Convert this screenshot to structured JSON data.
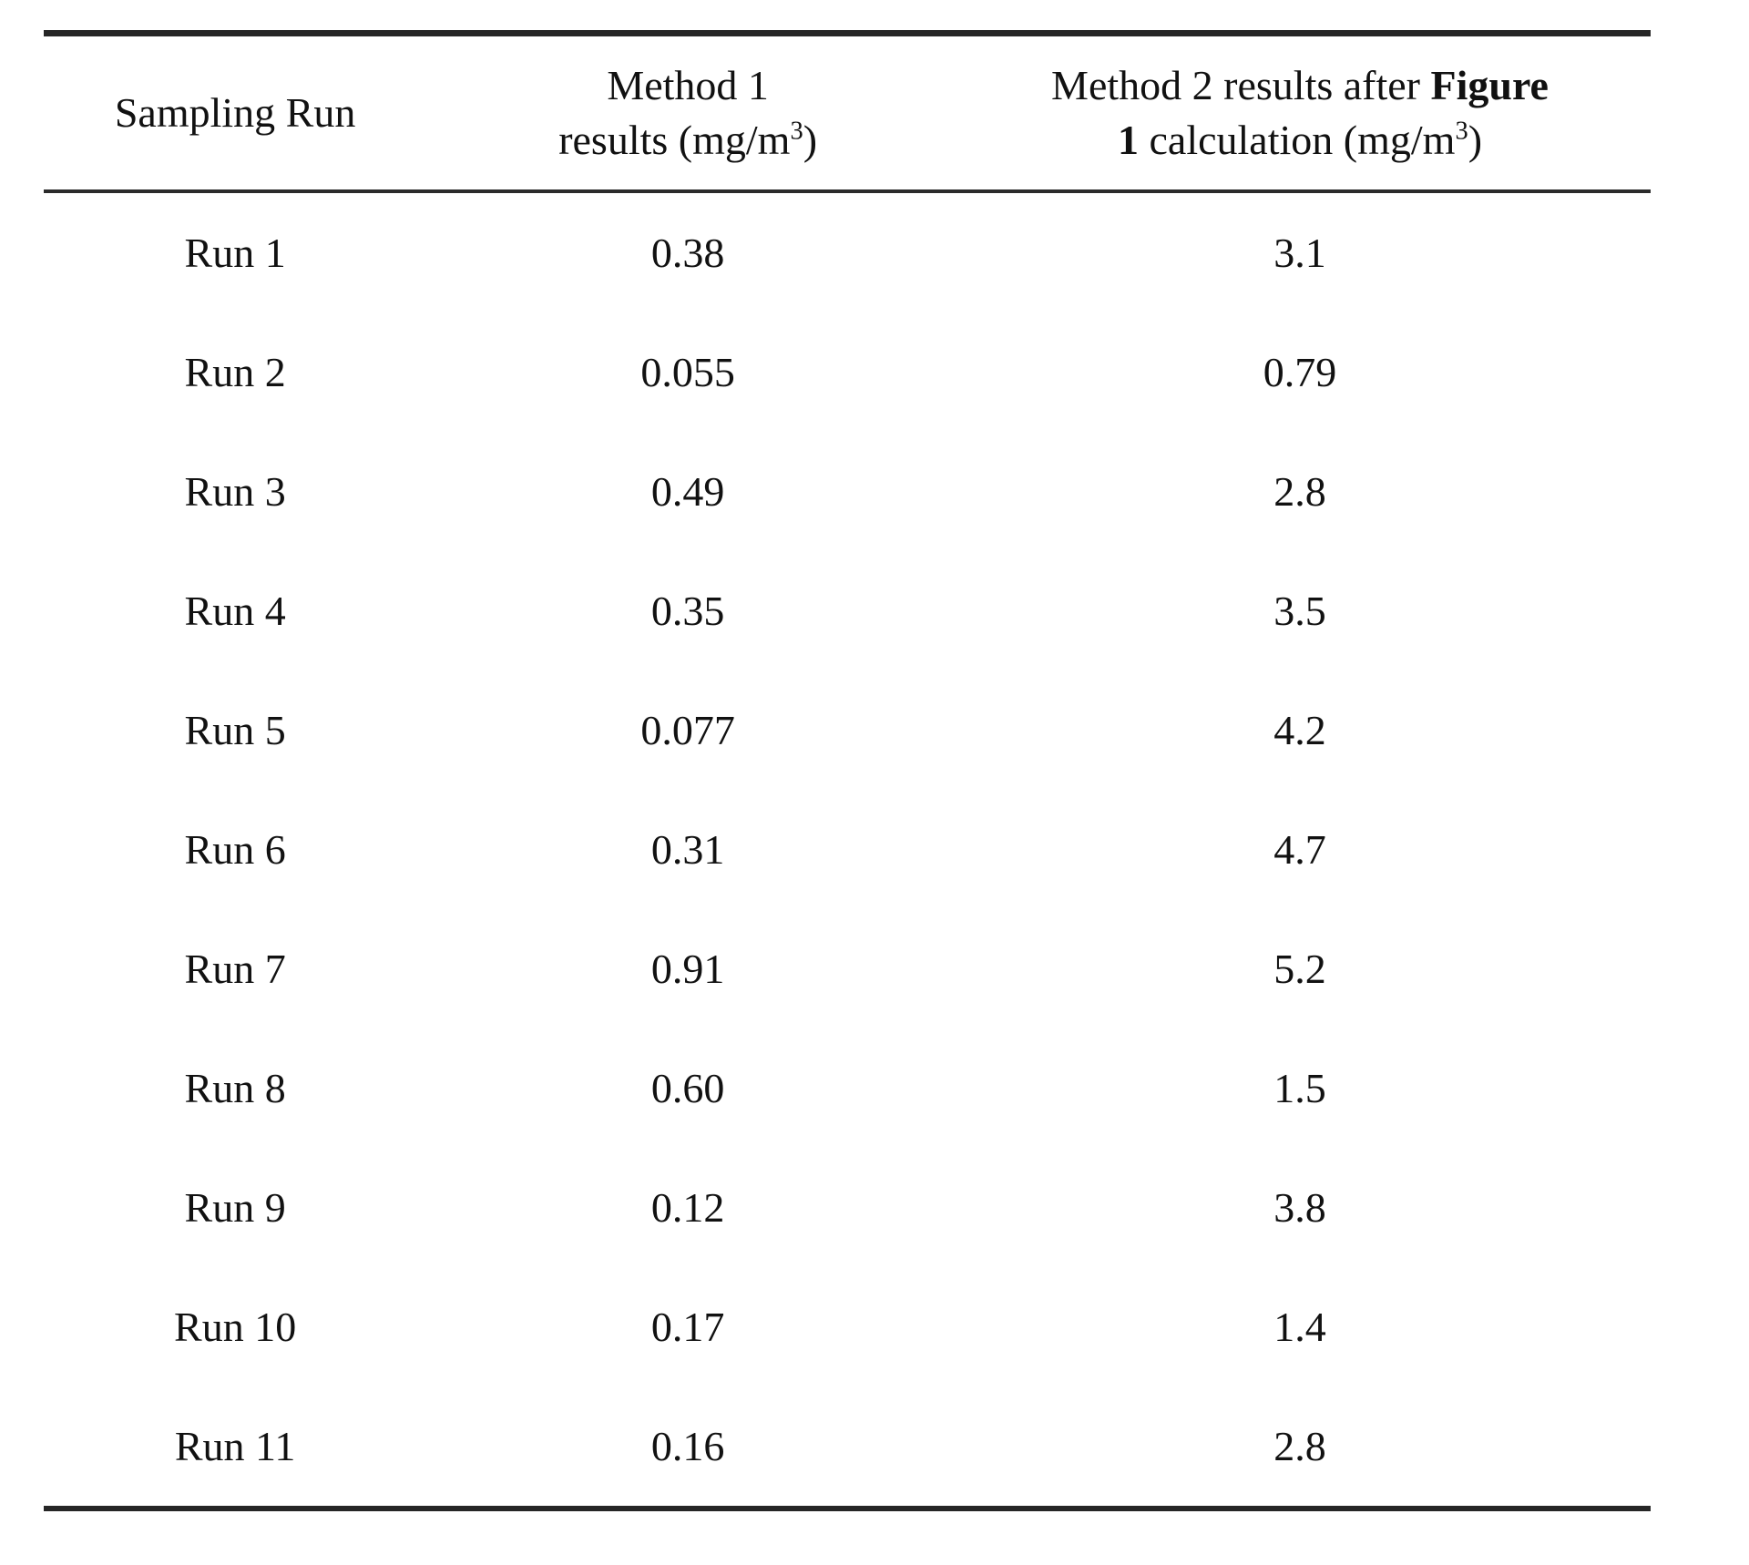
{
  "table": {
    "header": {
      "col1": "Sampling Run",
      "col2": {
        "line1": "Method 1",
        "line2_pre": "results (mg/m",
        "line2_sup": "3",
        "line2_post": ")"
      },
      "col3": {
        "line1_pre": "Method 2 results after ",
        "line1_bold": "Figure",
        "line2_bold": "1",
        "line2_mid": " calculation (mg/m",
        "line2_sup": "3",
        "line2_post": ")"
      }
    },
    "rows": [
      {
        "run": "Run 1",
        "method1": "0.38",
        "method2": "3.1"
      },
      {
        "run": "Run 2",
        "method1": "0.055",
        "method2": "0.79"
      },
      {
        "run": "Run 3",
        "method1": "0.49",
        "method2": "2.8"
      },
      {
        "run": "Run 4",
        "method1": "0.35",
        "method2": "3.5"
      },
      {
        "run": "Run 5",
        "method1": "0.077",
        "method2": "4.2"
      },
      {
        "run": "Run 6",
        "method1": "0.31",
        "method2": "4.7"
      },
      {
        "run": "Run 7",
        "method1": "0.91",
        "method2": "5.2"
      },
      {
        "run": "Run 8",
        "method1": "0.60",
        "method2": "1.5"
      },
      {
        "run": "Run 9",
        "method1": "0.12",
        "method2": "3.8"
      },
      {
        "run": "Run 10",
        "method1": "0.17",
        "method2": "1.4"
      },
      {
        "run": "Run 11",
        "method1": "0.16",
        "method2": "2.8"
      }
    ]
  }
}
